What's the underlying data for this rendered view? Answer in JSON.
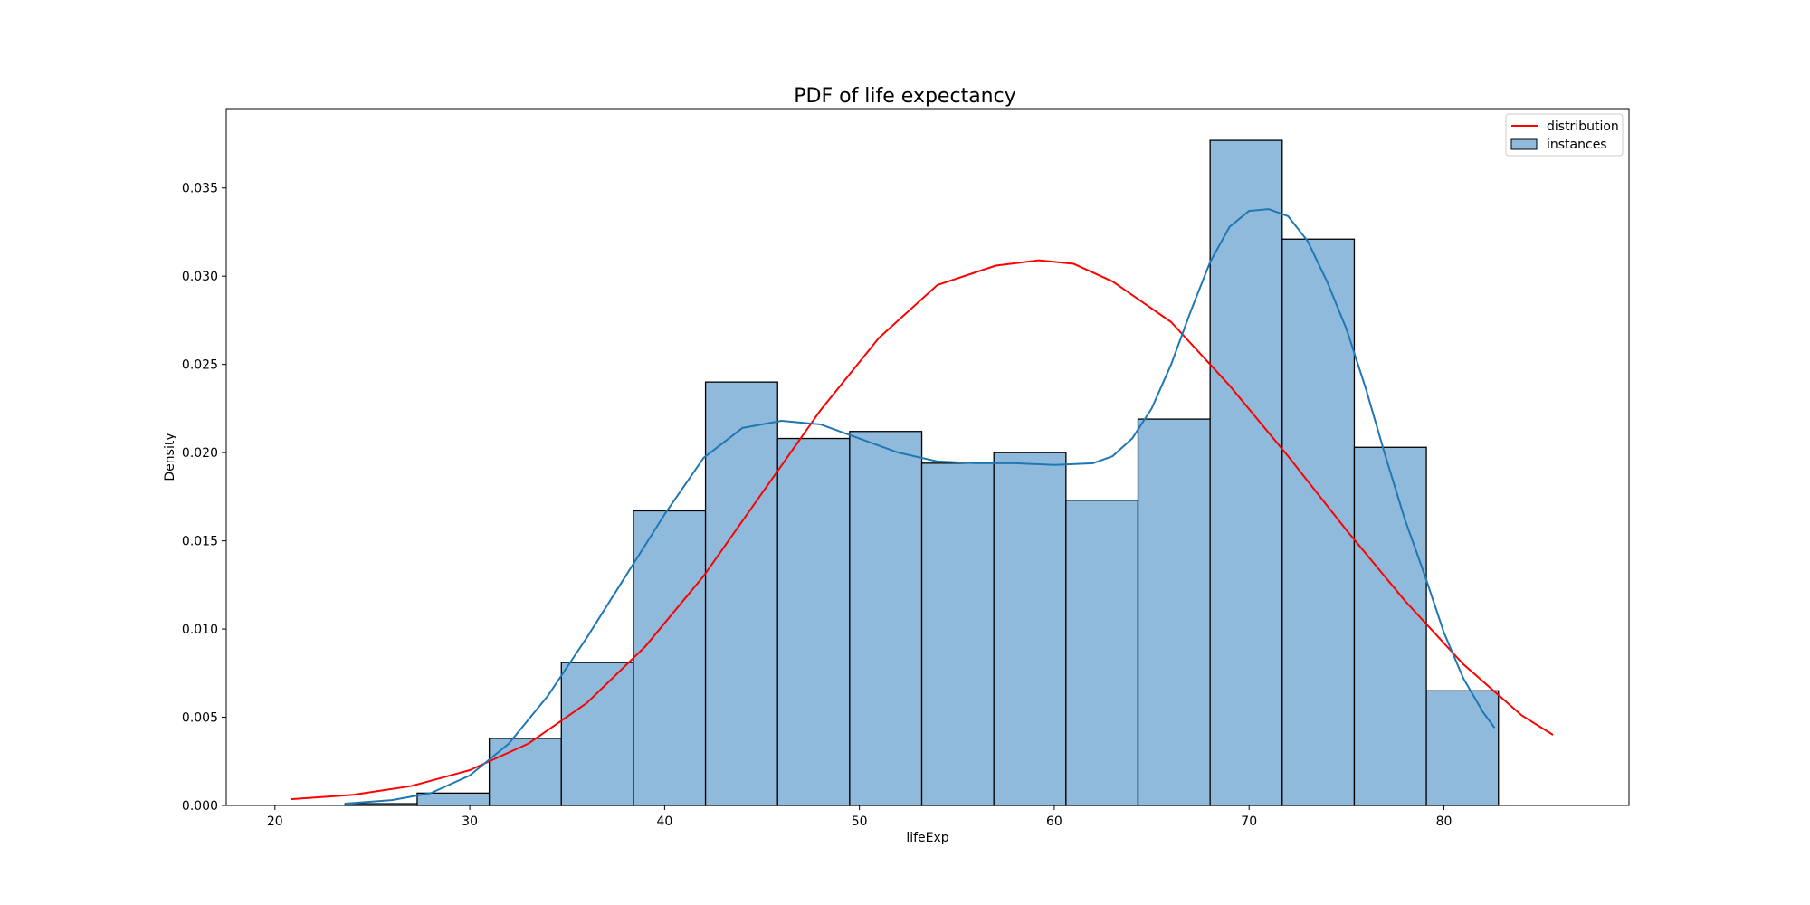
{
  "chart_data": {
    "type": "histogram",
    "title": "PDF of life expectancy",
    "xlabel": "lifeExp",
    "ylabel": "Density",
    "xlim": [
      17.5,
      89.5
    ],
    "ylim": [
      0,
      0.0395
    ],
    "xticks": [
      20,
      30,
      40,
      50,
      60,
      70,
      80
    ],
    "xtick_labels": [
      "20",
      "30",
      "40",
      "50",
      "60",
      "70",
      "80"
    ],
    "yticks": [
      0.0,
      0.005,
      0.01,
      0.015,
      0.02,
      0.025,
      0.03,
      0.035
    ],
    "ytick_labels": [
      "0.000",
      "0.005",
      "0.010",
      "0.015",
      "0.020",
      "0.025",
      "0.030",
      "0.035"
    ],
    "grid": false,
    "legend_position": "top-right",
    "legend": [
      {
        "label": "distribution",
        "kind": "line",
        "color": "#ff0000"
      },
      {
        "label": "instances",
        "kind": "patch",
        "color": "#8fbadb"
      }
    ],
    "colors": {
      "bar_fill": "#8fbadb",
      "bar_edge": "#000000",
      "kde": "#1f77b4",
      "normal_pdf": "#ff0000"
    },
    "bins": [
      {
        "x0": 23.6,
        "x1": 27.3,
        "density": 0.0001
      },
      {
        "x0": 27.3,
        "x1": 31.0,
        "density": 0.0007
      },
      {
        "x0": 31.0,
        "x1": 34.7,
        "density": 0.0038
      },
      {
        "x0": 34.7,
        "x1": 38.4,
        "density": 0.0081
      },
      {
        "x0": 38.4,
        "x1": 42.1,
        "density": 0.0167
      },
      {
        "x0": 42.1,
        "x1": 45.8,
        "density": 0.024
      },
      {
        "x0": 45.8,
        "x1": 49.5,
        "density": 0.0208
      },
      {
        "x0": 49.5,
        "x1": 53.2,
        "density": 0.0212
      },
      {
        "x0": 53.2,
        "x1": 56.9,
        "density": 0.0194
      },
      {
        "x0": 56.9,
        "x1": 60.6,
        "density": 0.02
      },
      {
        "x0": 60.6,
        "x1": 64.3,
        "density": 0.0173
      },
      {
        "x0": 64.3,
        "x1": 68.0,
        "density": 0.0219
      },
      {
        "x0": 68.0,
        "x1": 71.7,
        "density": 0.0377
      },
      {
        "x0": 71.7,
        "x1": 75.4,
        "density": 0.0321
      },
      {
        "x0": 75.4,
        "x1": 79.1,
        "density": 0.0203
      },
      {
        "x0": 79.1,
        "x1": 82.8,
        "density": 0.0065
      }
    ],
    "series": [
      {
        "name": "distribution",
        "type": "line",
        "x": [
          20.8,
          24,
          27,
          30,
          33,
          36,
          39,
          42,
          45,
          48,
          51,
          54,
          57,
          59.2,
          61,
          63,
          66,
          69,
          72,
          75,
          78,
          81,
          84,
          85.6
        ],
        "y": [
          0.00035,
          0.0006,
          0.0011,
          0.002,
          0.0035,
          0.0058,
          0.009,
          0.013,
          0.0177,
          0.0224,
          0.0265,
          0.0295,
          0.0306,
          0.0309,
          0.0307,
          0.0297,
          0.0274,
          0.0238,
          0.0198,
          0.0156,
          0.0116,
          0.008,
          0.0051,
          0.004
        ]
      },
      {
        "type": "line",
        "x": [
          23.6,
          26,
          28,
          30,
          32,
          34,
          36,
          38,
          40,
          42,
          44,
          46,
          48,
          50,
          52,
          54,
          56,
          58,
          60,
          62,
          63,
          64,
          65,
          66,
          67,
          68,
          69,
          70,
          71,
          72,
          73,
          74,
          75,
          76,
          77,
          78,
          79,
          80,
          81,
          82,
          82.6
        ],
        "y": [
          0.0001,
          0.0003,
          0.0007,
          0.0017,
          0.0035,
          0.0062,
          0.0095,
          0.013,
          0.0165,
          0.0197,
          0.0214,
          0.0218,
          0.0216,
          0.0208,
          0.02,
          0.0195,
          0.0194,
          0.0194,
          0.0193,
          0.0194,
          0.0198,
          0.0208,
          0.0225,
          0.025,
          0.028,
          0.0308,
          0.0328,
          0.0337,
          0.0338,
          0.0334,
          0.032,
          0.0297,
          0.027,
          0.0236,
          0.0198,
          0.0162,
          0.0131,
          0.0098,
          0.0072,
          0.0053,
          0.0044
        ]
      }
    ]
  }
}
